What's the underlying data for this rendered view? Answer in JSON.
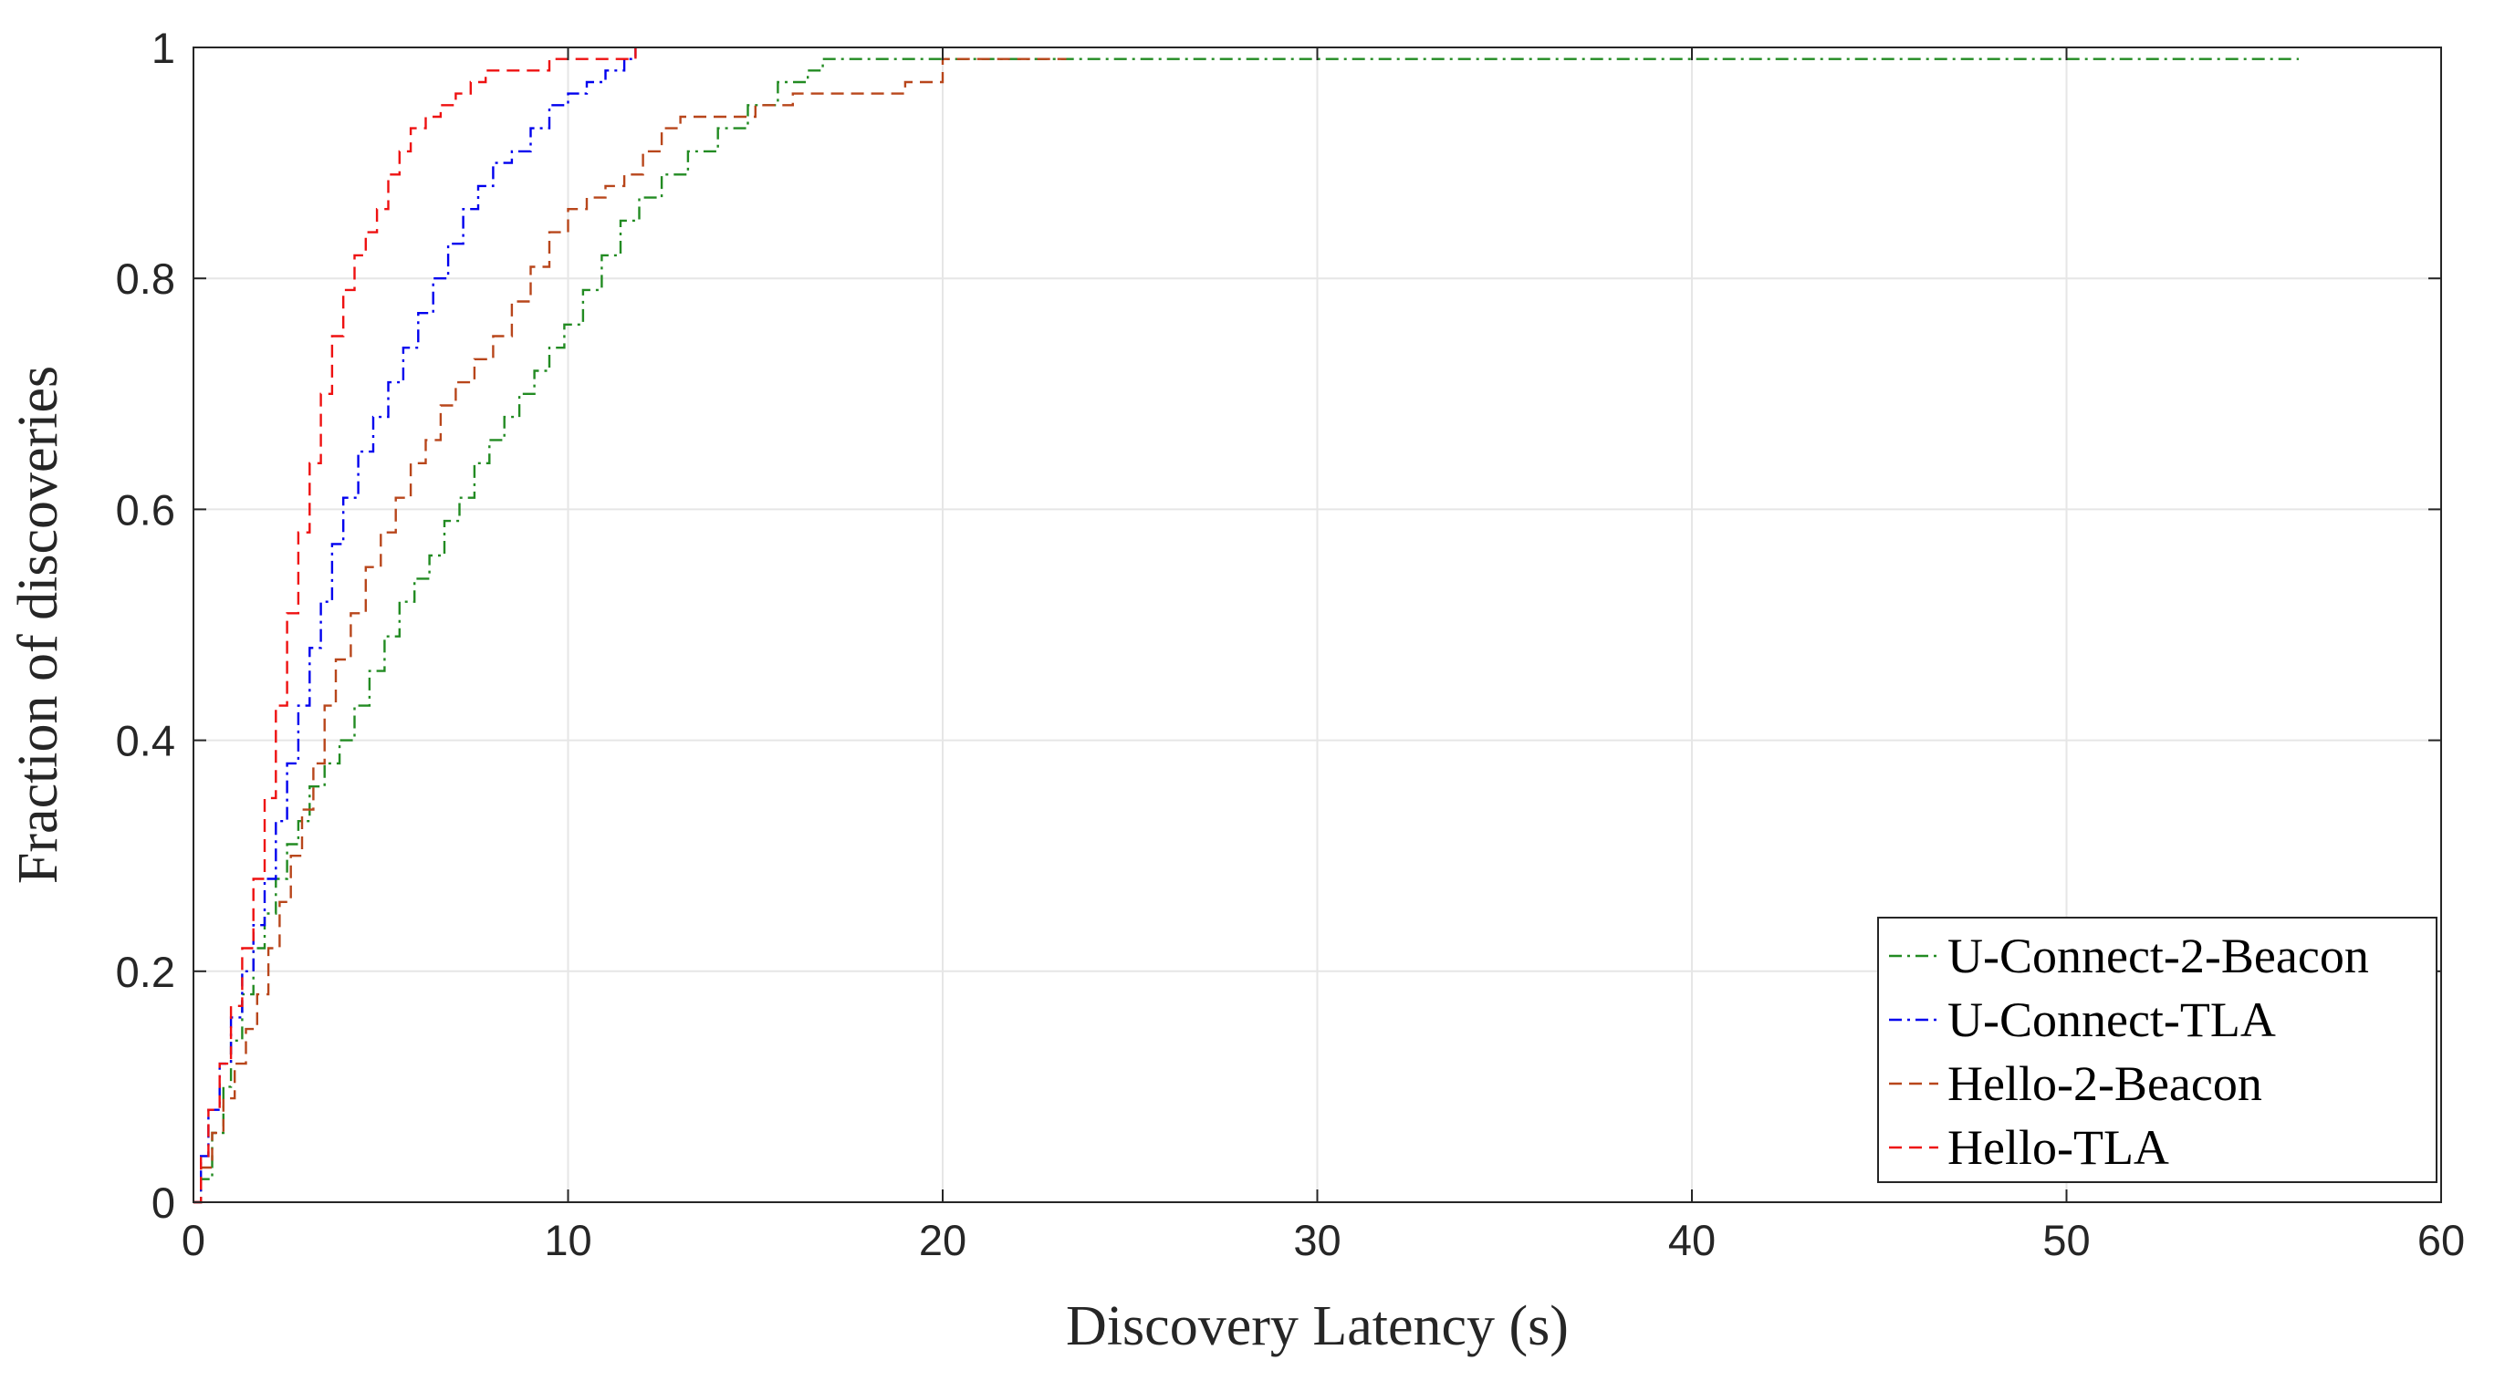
{
  "chart_data": {
    "type": "line",
    "title": "",
    "xlabel": "Discovery Latency (s)",
    "ylabel": "Fraction of discoveries",
    "xlim": [
      0,
      60
    ],
    "ylim": [
      0,
      1
    ],
    "xticks": [
      0,
      10,
      20,
      30,
      40,
      50,
      60
    ],
    "yticks": [
      0,
      0.2,
      0.4,
      0.6,
      0.8,
      1
    ],
    "xtick_labels": [
      "0",
      "10",
      "20",
      "30",
      "40",
      "50",
      "60"
    ],
    "ytick_labels": [
      "0",
      "0.2",
      "0.4",
      "0.6",
      "0.8",
      "1"
    ],
    "grid": true,
    "legend_position": "bottom-right",
    "step": true,
    "series": [
      {
        "name": "U-Connect-2-Beacon",
        "color": "#228B22",
        "dash": "dashdot",
        "x": [
          0,
          0.2,
          0.5,
          0.8,
          1.0,
          1.3,
          1.6,
          1.9,
          2.2,
          2.5,
          2.8,
          3.1,
          3.5,
          3.9,
          4.3,
          4.7,
          5.1,
          5.5,
          5.9,
          6.3,
          6.7,
          7.1,
          7.5,
          7.9,
          8.3,
          8.7,
          9.1,
          9.5,
          9.9,
          10.4,
          10.9,
          11.4,
          11.9,
          12.5,
          13.2,
          14.0,
          14.8,
          15.6,
          16.4,
          16.8,
          17.5,
          56.2
        ],
        "y": [
          0,
          0.02,
          0.06,
          0.1,
          0.14,
          0.18,
          0.22,
          0.25,
          0.28,
          0.31,
          0.33,
          0.36,
          0.38,
          0.4,
          0.43,
          0.46,
          0.49,
          0.52,
          0.54,
          0.56,
          0.59,
          0.61,
          0.64,
          0.66,
          0.68,
          0.7,
          0.72,
          0.74,
          0.76,
          0.79,
          0.82,
          0.85,
          0.87,
          0.89,
          0.91,
          0.93,
          0.95,
          0.97,
          0.98,
          0.99,
          0.99,
          0.99
        ]
      },
      {
        "name": "U-Connect-TLA",
        "color": "#0000EE",
        "dash": "dashdot",
        "x": [
          0,
          0.2,
          0.4,
          0.7,
          1.0,
          1.3,
          1.6,
          1.9,
          2.2,
          2.5,
          2.8,
          3.1,
          3.4,
          3.7,
          4.0,
          4.4,
          4.8,
          5.2,
          5.6,
          6.0,
          6.4,
          6.8,
          7.2,
          7.6,
          8.0,
          8.5,
          9.0,
          9.5,
          10.0,
          10.5,
          11.0,
          11.5,
          11.8
        ],
        "y": [
          0,
          0.04,
          0.08,
          0.12,
          0.16,
          0.2,
          0.24,
          0.28,
          0.33,
          0.38,
          0.43,
          0.48,
          0.52,
          0.57,
          0.61,
          0.65,
          0.68,
          0.71,
          0.74,
          0.77,
          0.8,
          0.83,
          0.86,
          0.88,
          0.9,
          0.91,
          0.93,
          0.95,
          0.96,
          0.97,
          0.98,
          0.99,
          1.0
        ]
      },
      {
        "name": "Hello-2-Beacon",
        "color": "#B8461B",
        "dash": "dashed",
        "x": [
          0,
          0.2,
          0.5,
          0.8,
          1.1,
          1.4,
          1.7,
          2.0,
          2.3,
          2.6,
          2.9,
          3.2,
          3.5,
          3.8,
          4.2,
          4.6,
          5.0,
          5.4,
          5.8,
          6.2,
          6.6,
          7.0,
          7.5,
          8.0,
          8.5,
          9.0,
          9.5,
          10.0,
          10.5,
          11.0,
          11.5,
          12.0,
          12.5,
          13.0,
          14.0,
          15.0,
          16.0,
          17.0,
          18.0,
          19.0,
          20.0,
          23.3
        ],
        "y": [
          0,
          0.03,
          0.06,
          0.09,
          0.12,
          0.15,
          0.18,
          0.22,
          0.26,
          0.3,
          0.34,
          0.38,
          0.43,
          0.47,
          0.51,
          0.55,
          0.58,
          0.61,
          0.64,
          0.66,
          0.69,
          0.71,
          0.73,
          0.75,
          0.78,
          0.81,
          0.84,
          0.86,
          0.87,
          0.88,
          0.89,
          0.91,
          0.93,
          0.94,
          0.94,
          0.95,
          0.96,
          0.96,
          0.96,
          0.97,
          0.99,
          0.99
        ]
      },
      {
        "name": "Hello-TLA",
        "color": "#EE1111",
        "dash": "dashed",
        "x": [
          0,
          0.2,
          0.4,
          0.7,
          1.0,
          1.3,
          1.6,
          1.9,
          2.2,
          2.5,
          2.8,
          3.1,
          3.4,
          3.7,
          4.0,
          4.3,
          4.6,
          4.9,
          5.2,
          5.5,
          5.8,
          6.2,
          6.6,
          7.0,
          7.4,
          7.8,
          8.5,
          9.5,
          10.5,
          11.5,
          11.8
        ],
        "y": [
          0,
          0.04,
          0.08,
          0.12,
          0.17,
          0.22,
          0.28,
          0.35,
          0.43,
          0.51,
          0.58,
          0.64,
          0.7,
          0.75,
          0.79,
          0.82,
          0.84,
          0.86,
          0.89,
          0.91,
          0.93,
          0.94,
          0.95,
          0.96,
          0.97,
          0.98,
          0.98,
          0.99,
          0.99,
          0.99,
          1.0
        ]
      }
    ]
  }
}
